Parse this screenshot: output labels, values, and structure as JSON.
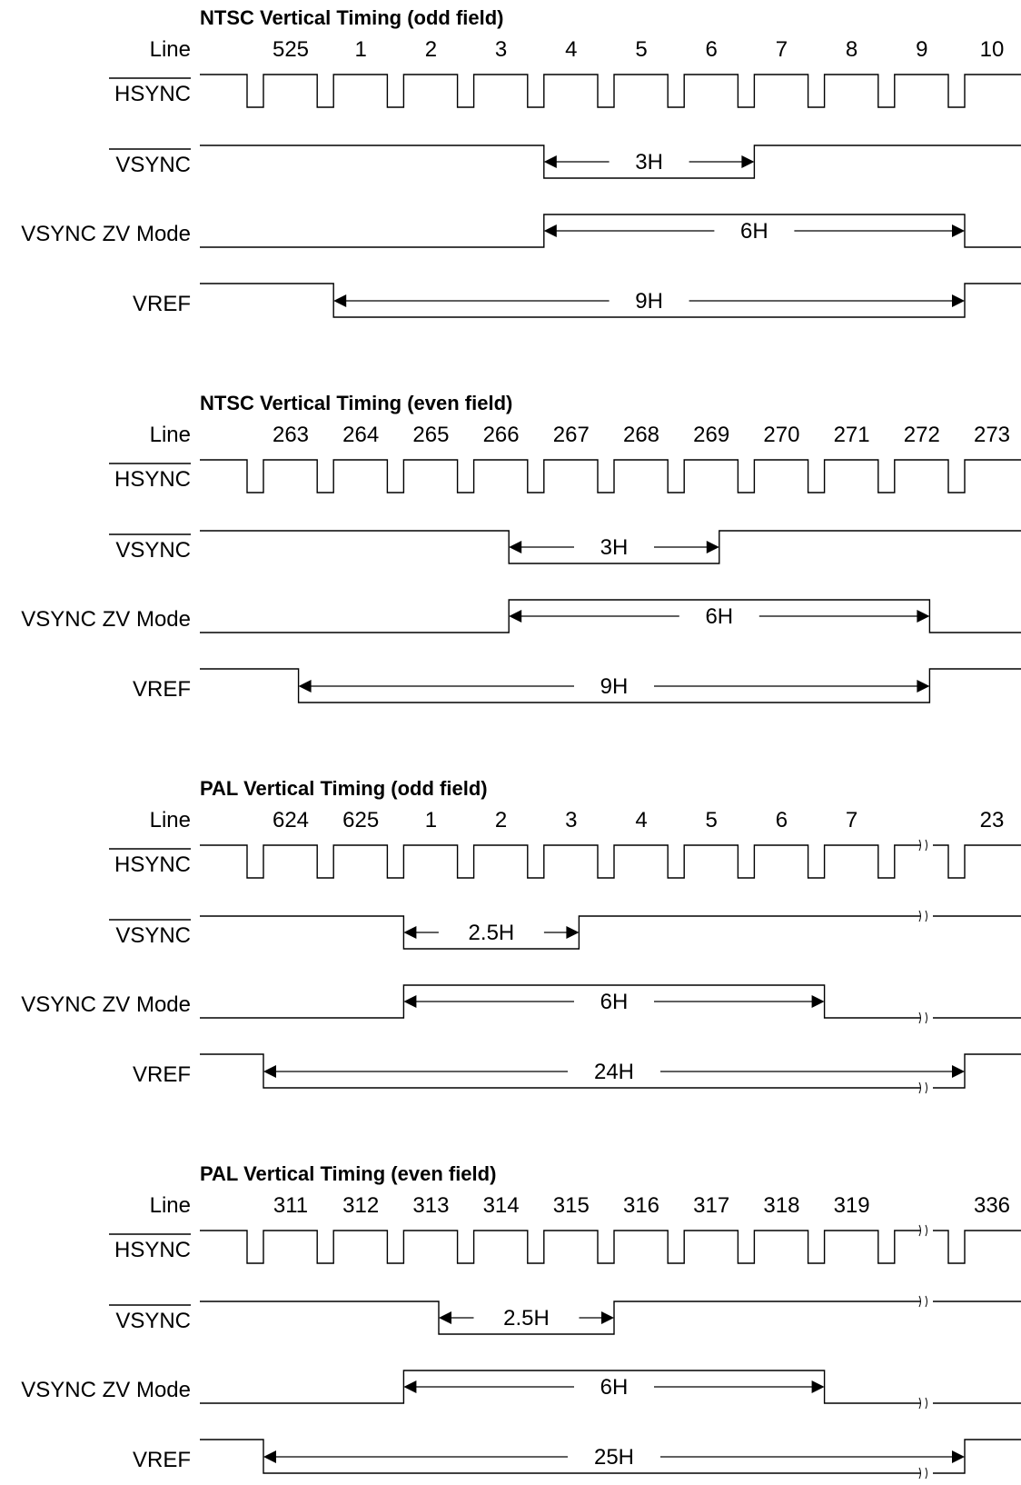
{
  "colors": {
    "line": "#000000",
    "background": "#ffffff"
  },
  "signals": {
    "line": "Line",
    "hsync": "HSYNC",
    "vsync": "VSYNC",
    "vsync_zv": "VSYNC ZV Mode",
    "vref": "VREF"
  },
  "sections": [
    {
      "title": "NTSC Vertical Timing (odd field)",
      "line_numbers": [
        "525",
        "1",
        "2",
        "3",
        "4",
        "5",
        "6",
        "7",
        "8",
        "9",
        "10"
      ],
      "has_break": false,
      "vsync": {
        "start_line_index": 4,
        "duration_lines": 3,
        "label": "3H"
      },
      "vsync_zv": {
        "start_line_index": 4,
        "duration_lines": 6,
        "label": "6H"
      },
      "vref": {
        "start_line_index": 1,
        "duration_lines": 9,
        "label": "9H"
      }
    },
    {
      "title": "NTSC Vertical Timing (even field)",
      "line_numbers": [
        "263",
        "264",
        "265",
        "266",
        "267",
        "268",
        "269",
        "270",
        "271",
        "272",
        "273"
      ],
      "has_break": false,
      "vsync": {
        "start_line_index": 3.5,
        "duration_lines": 3,
        "label": "3H"
      },
      "vsync_zv": {
        "start_line_index": 3.5,
        "duration_lines": 6,
        "label": "6H"
      },
      "vref": {
        "start_line_index": 0.5,
        "duration_lines": 9,
        "label": "9H"
      }
    },
    {
      "title": "PAL Vertical Timing (odd field)",
      "line_numbers": [
        "624",
        "625",
        "1",
        "2",
        "3",
        "4",
        "5",
        "6",
        "7",
        "",
        "23"
      ],
      "has_break": true,
      "vsync": {
        "start_line_index": 2,
        "duration_lines": 2.5,
        "label": "2.5H"
      },
      "vsync_zv": {
        "start_line_index": 2,
        "duration_lines": 6,
        "label": "6H"
      },
      "vref": {
        "start_line_index": 0,
        "duration_lines": 24,
        "label": "24H"
      }
    },
    {
      "title": "PAL Vertical Timing (even field)",
      "line_numbers": [
        "311",
        "312",
        "313",
        "314",
        "315",
        "316",
        "317",
        "318",
        "319",
        "",
        "336"
      ],
      "has_break": true,
      "vsync": {
        "start_line_index": 2.5,
        "duration_lines": 2.5,
        "label": "2.5H"
      },
      "vsync_zv": {
        "start_line_index": 2,
        "duration_lines": 6,
        "label": "6H"
      },
      "vref": {
        "start_line_index": 0,
        "duration_lines": 25,
        "label": "25H"
      }
    }
  ]
}
